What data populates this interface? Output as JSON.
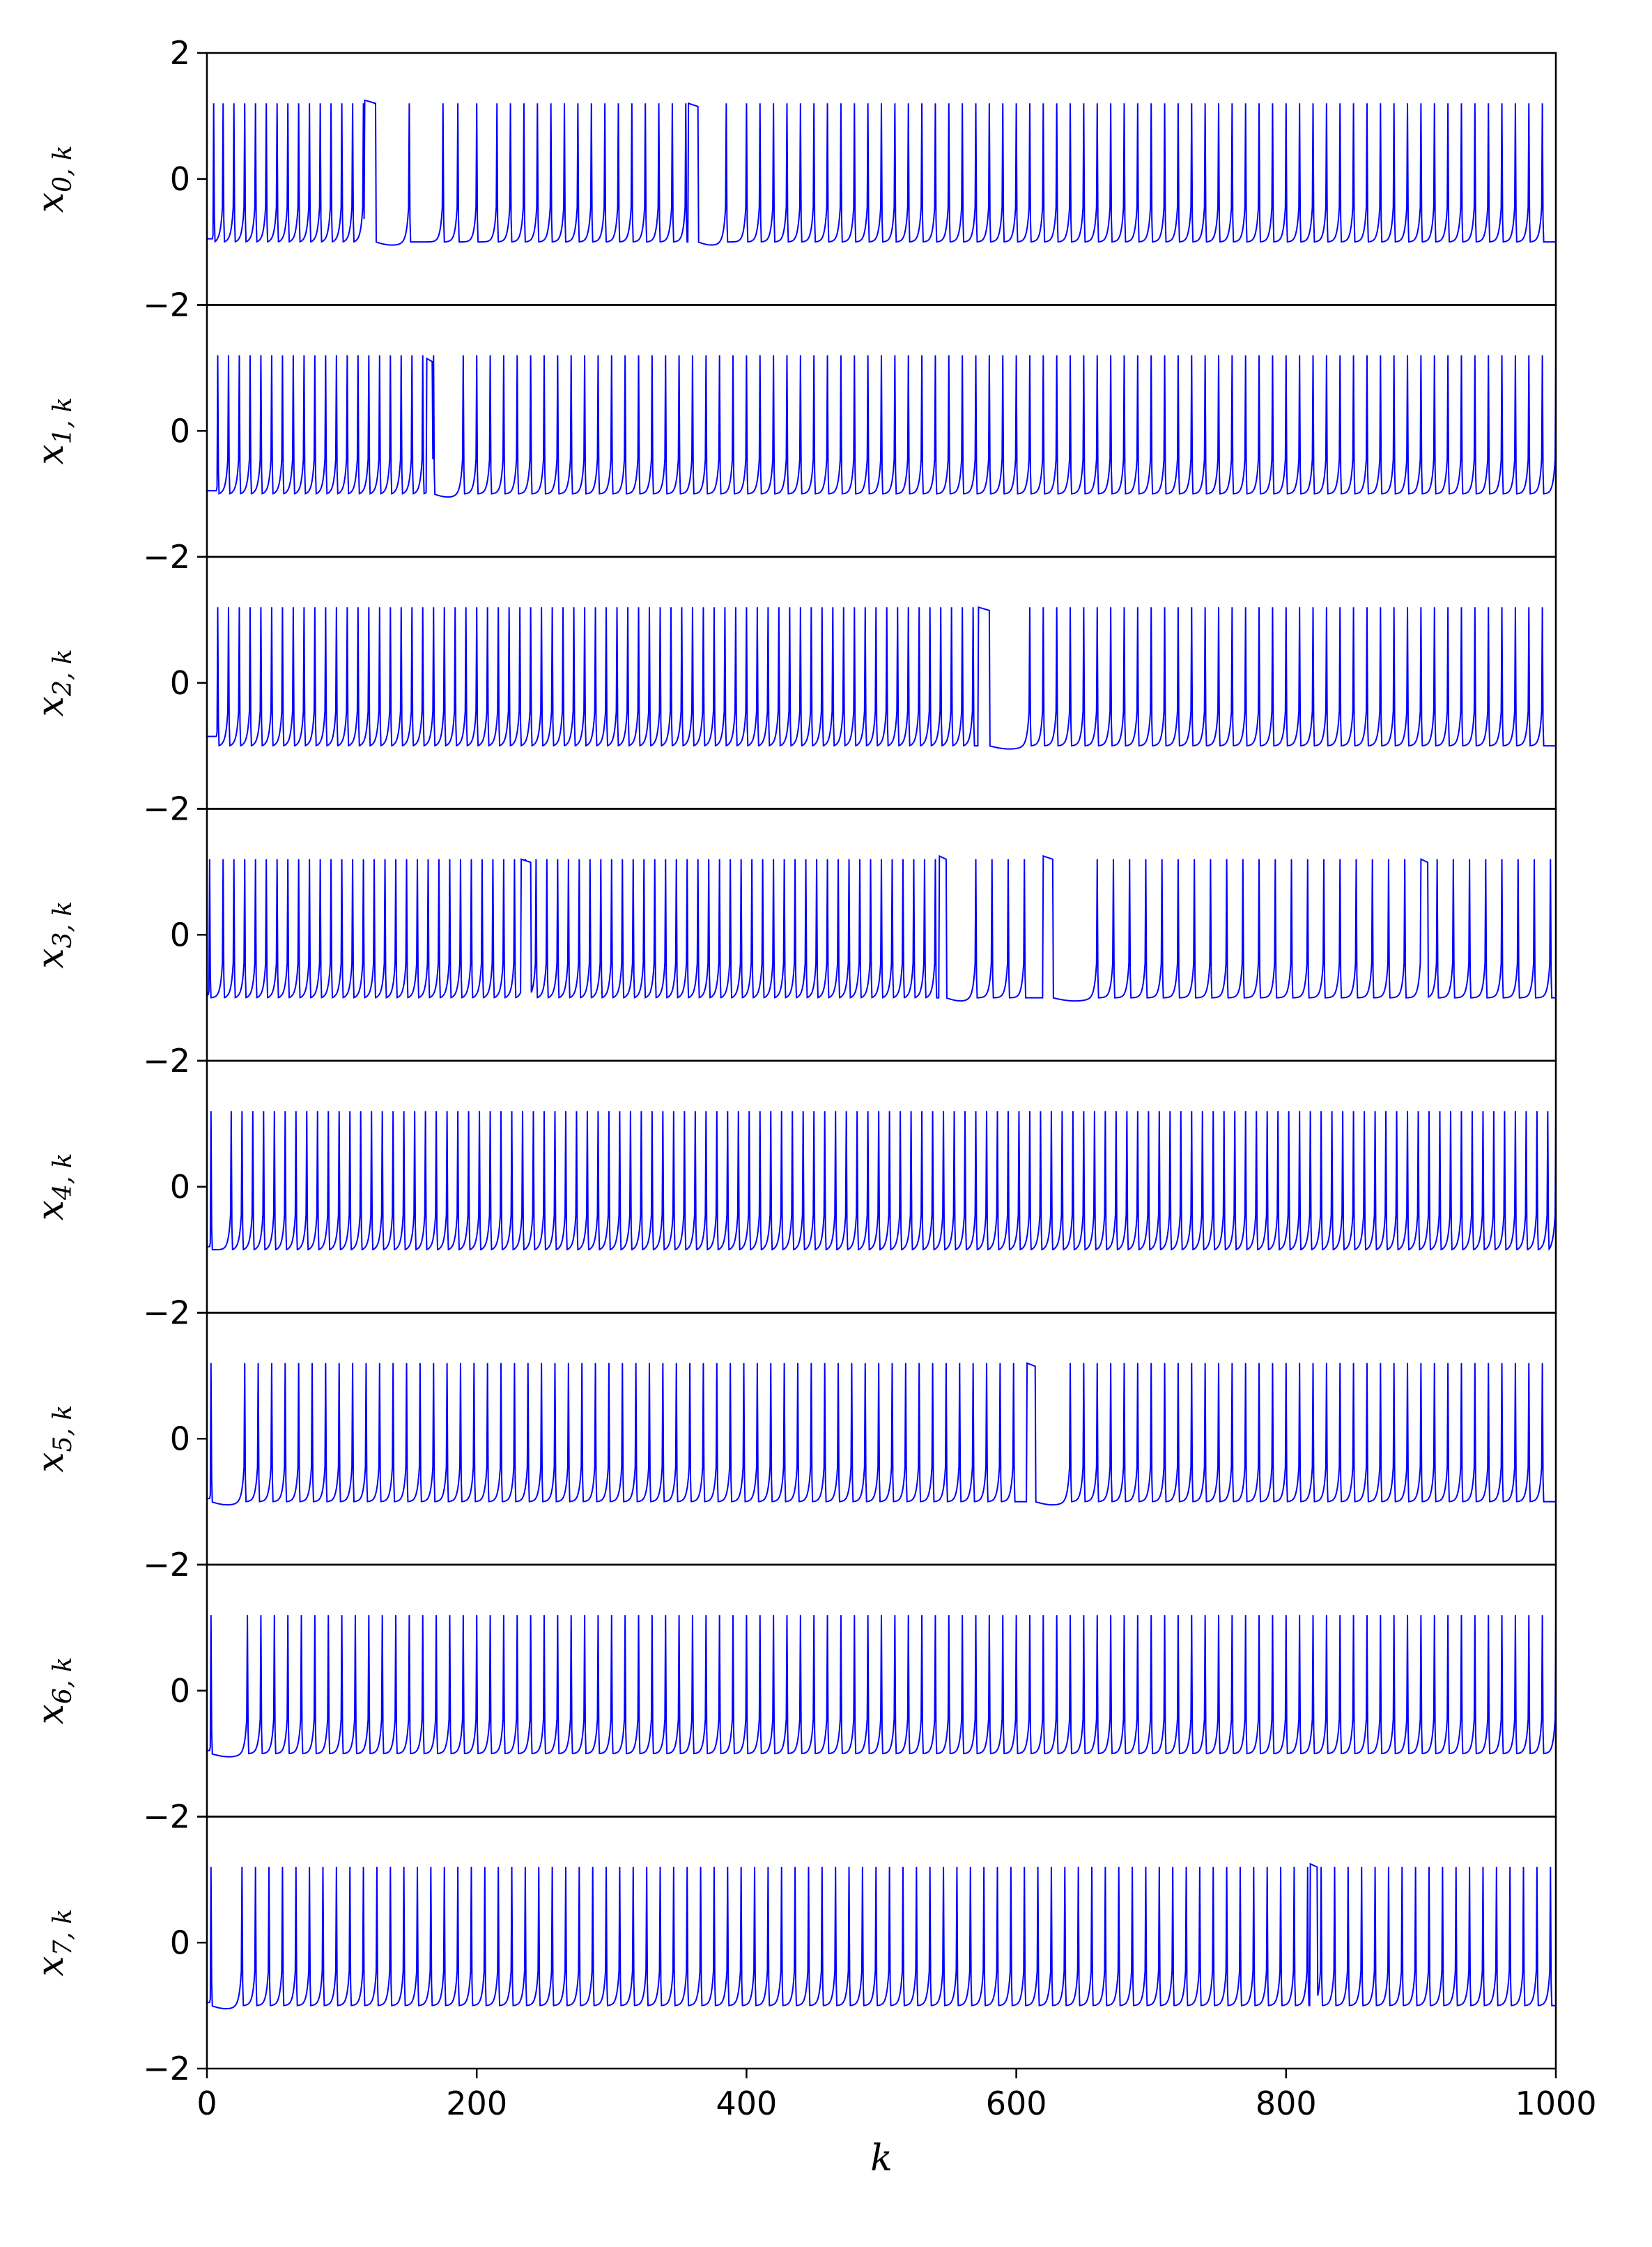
{
  "chart_data": {
    "type": "line",
    "layout": "stacked-panels",
    "xlabel": "k",
    "xlim": [
      0,
      1000
    ],
    "xticks": [
      0,
      200,
      400,
      600,
      800,
      1000
    ],
    "xtick_labels": [
      "0",
      "200",
      "400",
      "600",
      "800",
      "1000"
    ],
    "ylim": [
      -2,
      2
    ],
    "yticks": [
      -2,
      0,
      2
    ],
    "ytick_labels": [
      "−2",
      "0",
      "2"
    ],
    "line_color": "#0000ff",
    "grid": false,
    "legend": "none",
    "signal": {
      "rest_level": -1.0,
      "spike_peak": 1.2,
      "recovery_rate": 0.12,
      "description_units": "k"
    },
    "panels": [
      {
        "ylabel_base": "x",
        "ylabel_sub": "0, k",
        "initial": -0.95,
        "spikes": [
          5,
          12,
          20,
          28,
          36,
          44,
          52,
          60,
          68,
          76,
          84,
          92,
          100,
          108,
          116,
          124,
          150,
          175,
          186,
          200,
          215,
          225,
          235,
          245,
          255,
          265,
          275,
          285,
          295,
          305,
          315,
          325,
          335,
          345,
          355,
          385,
          400,
          410,
          420,
          430,
          440,
          450,
          460,
          470,
          480,
          490,
          500,
          510,
          520,
          530,
          540,
          550,
          560,
          570,
          580,
          590,
          600,
          610,
          620,
          630,
          640,
          650,
          660,
          670,
          680,
          690,
          700,
          710,
          720,
          730,
          740,
          750,
          760,
          770,
          780,
          790,
          800,
          810,
          820,
          830,
          840,
          850,
          860,
          870,
          880,
          890,
          900,
          910,
          920,
          930,
          940,
          950,
          960,
          970,
          980,
          990
        ],
        "plateaus": [
          [
            117,
            125,
            1.25
          ],
          [
            357,
            364,
            1.2
          ]
        ],
        "long_rest": [
          [
            125,
            150
          ],
          [
            364,
            385
          ]
        ]
      },
      {
        "ylabel_base": "x",
        "ylabel_sub": "1, k",
        "initial": -0.95,
        "spikes": [
          8,
          16,
          24,
          32,
          40,
          48,
          56,
          64,
          72,
          80,
          88,
          96,
          104,
          112,
          120,
          128,
          136,
          144,
          152,
          160,
          168,
          190,
          200,
          210,
          220,
          230,
          240,
          250,
          260,
          270,
          280,
          290,
          300,
          310,
          320,
          330,
          340,
          350,
          360,
          370,
          380,
          390,
          400,
          410,
          420,
          430,
          440,
          450,
          460,
          470,
          480,
          490,
          500,
          510,
          520,
          530,
          540,
          550,
          560,
          570,
          580,
          590,
          600,
          610,
          620,
          630,
          640,
          650,
          660,
          670,
          680,
          690,
          700,
          710,
          720,
          730,
          740,
          750,
          760,
          770,
          780,
          790,
          800,
          810,
          820,
          830,
          840,
          850,
          860,
          870,
          880,
          890,
          900,
          910,
          920,
          930,
          940,
          950,
          960,
          970,
          980,
          990,
          1000
        ],
        "plateaus": [
          [
            163,
            167,
            1.15
          ]
        ],
        "long_rest": [
          [
            168,
            190
          ]
        ]
      },
      {
        "ylabel_base": "x",
        "ylabel_sub": "2, k",
        "initial": -0.85,
        "spikes": [
          8,
          16,
          24,
          32,
          40,
          48,
          56,
          64,
          72,
          80,
          88,
          96,
          104,
          112,
          120,
          128,
          136,
          144,
          152,
          160,
          168,
          176,
          184,
          192,
          200,
          208,
          216,
          224,
          232,
          240,
          248,
          256,
          264,
          272,
          280,
          288,
          296,
          304,
          312,
          320,
          328,
          336,
          344,
          352,
          360,
          368,
          376,
          384,
          392,
          400,
          408,
          416,
          424,
          432,
          440,
          448,
          456,
          464,
          472,
          480,
          488,
          496,
          504,
          512,
          520,
          528,
          536,
          544,
          552,
          560,
          568,
          610,
          620,
          630,
          640,
          650,
          660,
          670,
          680,
          690,
          700,
          710,
          720,
          730,
          740,
          750,
          760,
          770,
          780,
          790,
          800,
          810,
          820,
          830,
          840,
          850,
          860,
          870,
          880,
          890,
          900,
          910,
          920,
          930,
          940,
          950,
          960,
          970,
          980,
          990
        ],
        "plateaus": [
          [
            572,
            580,
            1.2
          ]
        ],
        "long_rest": [
          [
            580,
            610
          ]
        ]
      },
      {
        "ylabel_base": "x",
        "ylabel_sub": "3, k",
        "initial": -0.95,
        "spikes": [
          2,
          12,
          20,
          28,
          36,
          44,
          52,
          60,
          68,
          76,
          84,
          92,
          100,
          108,
          116,
          124,
          132,
          140,
          148,
          156,
          164,
          172,
          180,
          188,
          196,
          204,
          212,
          220,
          228,
          236,
          244,
          252,
          260,
          268,
          276,
          284,
          292,
          300,
          308,
          316,
          324,
          332,
          340,
          348,
          356,
          364,
          372,
          380,
          388,
          396,
          404,
          412,
          420,
          428,
          436,
          444,
          452,
          460,
          468,
          476,
          484,
          492,
          500,
          508,
          516,
          524,
          532,
          540,
          570,
          582,
          594,
          606,
          660,
          672,
          684,
          696,
          708,
          720,
          732,
          744,
          756,
          768,
          780,
          792,
          804,
          816,
          828,
          840,
          852,
          864,
          876,
          888,
          900,
          912,
          924,
          936,
          948,
          960,
          972,
          984,
          996
        ],
        "plateaus": [
          [
            233,
            240,
            1.2
          ],
          [
            543,
            548,
            1.25
          ],
          [
            620,
            627,
            1.25
          ],
          [
            900,
            905,
            1.2
          ]
        ],
        "long_rest": [
          [
            548,
            570
          ],
          [
            627,
            660
          ]
        ]
      },
      {
        "ylabel_base": "x",
        "ylabel_sub": "4, k",
        "initial": -0.95,
        "spikes": [
          3,
          18,
          26,
          34,
          42,
          50,
          58,
          66,
          74,
          82,
          90,
          98,
          106,
          114,
          122,
          130,
          138,
          146,
          154,
          162,
          170,
          178,
          186,
          194,
          202,
          210,
          218,
          226,
          234,
          242,
          250,
          258,
          266,
          274,
          282,
          290,
          298,
          306,
          314,
          322,
          330,
          338,
          346,
          354,
          362,
          370,
          378,
          386,
          394,
          402,
          410,
          418,
          426,
          434,
          442,
          450,
          458,
          466,
          474,
          482,
          490,
          498,
          506,
          514,
          522,
          530,
          538,
          546,
          554,
          562,
          570,
          578,
          586,
          594,
          602,
          610,
          618,
          626,
          634,
          642,
          650,
          658,
          666,
          674,
          682,
          690,
          698,
          706,
          714,
          722,
          730,
          738,
          746,
          754,
          762,
          770,
          778,
          786,
          794,
          802,
          810,
          818,
          826,
          834,
          842,
          850,
          858,
          866,
          874,
          882,
          890,
          898,
          906,
          914,
          922,
          930,
          938,
          946,
          954,
          962,
          970,
          978,
          986,
          994,
          1000
        ],
        "plateaus": [],
        "long_rest": []
      },
      {
        "ylabel_base": "x",
        "ylabel_sub": "5, k",
        "initial": -0.95,
        "spikes": [
          3,
          28,
          38,
          48,
          58,
          68,
          78,
          88,
          98,
          108,
          118,
          128,
          138,
          148,
          158,
          168,
          178,
          188,
          198,
          208,
          218,
          228,
          238,
          248,
          258,
          268,
          278,
          288,
          298,
          308,
          318,
          328,
          338,
          348,
          358,
          368,
          378,
          388,
          398,
          408,
          418,
          428,
          438,
          448,
          458,
          468,
          478,
          488,
          498,
          508,
          518,
          528,
          538,
          548,
          558,
          568,
          578,
          588,
          598,
          640,
          650,
          660,
          670,
          680,
          690,
          700,
          710,
          720,
          730,
          740,
          750,
          760,
          770,
          780,
          790,
          800,
          810,
          820,
          830,
          840,
          850,
          860,
          870,
          880,
          890,
          900,
          910,
          920,
          930,
          940,
          950,
          960,
          970,
          980,
          990
        ],
        "plateaus": [
          [
            608,
            614,
            1.2
          ]
        ],
        "long_rest": [
          [
            3,
            28
          ],
          [
            614,
            640
          ]
        ]
      },
      {
        "ylabel_base": "x",
        "ylabel_sub": "6, k",
        "initial": -0.95,
        "spikes": [
          3,
          30,
          40,
          50,
          60,
          70,
          80,
          90,
          100,
          110,
          120,
          130,
          140,
          150,
          160,
          170,
          180,
          190,
          200,
          210,
          220,
          230,
          240,
          250,
          260,
          270,
          280,
          290,
          300,
          310,
          320,
          330,
          340,
          350,
          360,
          370,
          380,
          390,
          400,
          410,
          420,
          430,
          440,
          450,
          460,
          470,
          480,
          490,
          500,
          510,
          520,
          530,
          540,
          550,
          560,
          570,
          580,
          590,
          600,
          610,
          620,
          630,
          640,
          650,
          660,
          670,
          680,
          690,
          700,
          710,
          720,
          730,
          740,
          750,
          760,
          770,
          780,
          790,
          800,
          810,
          820,
          830,
          840,
          850,
          860,
          870,
          880,
          890,
          900,
          910,
          920,
          930,
          940,
          950,
          960,
          970,
          980,
          990,
          1000
        ],
        "plateaus": [],
        "long_rest": [
          [
            3,
            30
          ]
        ]
      },
      {
        "ylabel_base": "x",
        "ylabel_sub": "7, k",
        "initial": -0.95,
        "spikes": [
          3,
          26,
          36,
          46,
          56,
          66,
          76,
          86,
          96,
          106,
          116,
          126,
          136,
          146,
          156,
          166,
          176,
          186,
          196,
          206,
          216,
          226,
          236,
          246,
          256,
          266,
          276,
          286,
          296,
          306,
          316,
          326,
          336,
          346,
          356,
          366,
          376,
          386,
          396,
          406,
          416,
          426,
          436,
          446,
          456,
          466,
          476,
          486,
          496,
          506,
          516,
          526,
          536,
          546,
          556,
          566,
          576,
          586,
          596,
          606,
          616,
          626,
          636,
          646,
          656,
          666,
          676,
          686,
          696,
          706,
          716,
          726,
          736,
          746,
          756,
          766,
          776,
          786,
          796,
          806,
          816,
          826,
          836,
          846,
          856,
          866,
          876,
          886,
          896,
          906,
          916,
          926,
          936,
          946,
          956,
          966,
          976,
          986,
          996
        ],
        "plateaus": [
          [
            818,
            823,
            1.25
          ]
        ],
        "long_rest": [
          [
            3,
            26
          ]
        ]
      }
    ]
  }
}
